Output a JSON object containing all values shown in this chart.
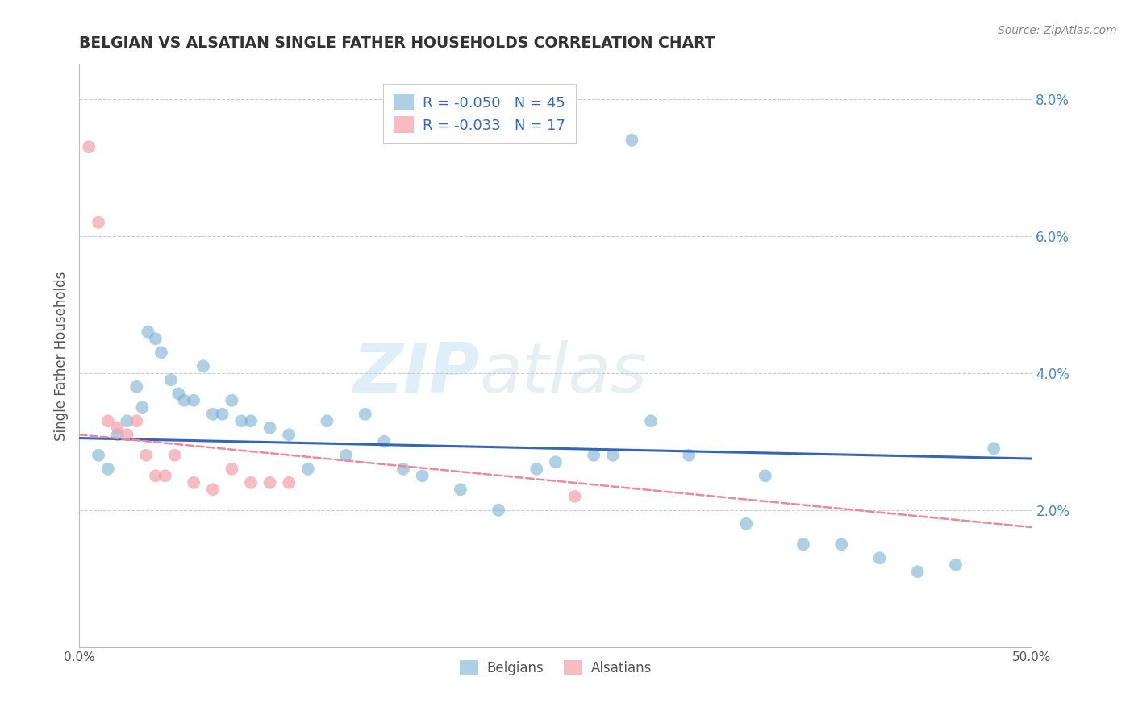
{
  "title": "BELGIAN VS ALSATIAN SINGLE FATHER HOUSEHOLDS CORRELATION CHART",
  "source": "Source: ZipAtlas.com",
  "ylabel": "Single Father Households",
  "xlim": [
    0.0,
    50.0
  ],
  "ylim": [
    0.0,
    8.5
  ],
  "yticks": [
    2.0,
    4.0,
    6.0,
    8.0
  ],
  "ytick_labels": [
    "2.0%",
    "4.0%",
    "6.0%",
    "8.0%"
  ],
  "watermark_zip": "ZIP",
  "watermark_atlas": "atlas",
  "legend_belgian_r": "-0.050",
  "legend_belgian_n": "45",
  "legend_alsatian_r": "-0.033",
  "legend_alsatian_n": "17",
  "belgian_color": "#7BAFD4",
  "alsatian_color": "#F4A0A8",
  "belgian_line_color": "#3366BB",
  "alsatian_line_color": "#EE8899",
  "belgian_scatter_x": [
    1.0,
    1.5,
    2.0,
    2.5,
    3.0,
    3.3,
    3.6,
    4.0,
    4.3,
    4.8,
    5.2,
    5.5,
    6.0,
    6.5,
    7.0,
    7.5,
    8.0,
    8.5,
    9.0,
    10.0,
    11.0,
    12.0,
    13.0,
    14.0,
    15.0,
    16.0,
    17.0,
    18.0,
    20.0,
    22.0,
    24.0,
    25.0,
    27.0,
    28.0,
    30.0,
    32.0,
    35.0,
    36.0,
    38.0,
    40.0,
    42.0,
    44.0,
    46.0,
    48.0,
    29.0
  ],
  "belgian_scatter_y": [
    2.8,
    2.6,
    3.1,
    3.3,
    3.8,
    3.5,
    4.6,
    4.5,
    4.3,
    3.9,
    3.7,
    3.6,
    3.6,
    4.1,
    3.4,
    3.4,
    3.6,
    3.3,
    3.3,
    3.2,
    3.1,
    2.6,
    3.3,
    2.8,
    3.4,
    3.0,
    2.6,
    2.5,
    2.3,
    2.0,
    2.6,
    2.7,
    2.8,
    2.8,
    3.3,
    2.8,
    1.8,
    2.5,
    1.5,
    1.5,
    1.3,
    1.1,
    1.2,
    2.9,
    7.4
  ],
  "alsatian_scatter_x": [
    0.5,
    1.0,
    1.5,
    2.0,
    2.5,
    3.0,
    3.5,
    4.0,
    4.5,
    5.0,
    6.0,
    7.0,
    8.0,
    9.0,
    10.0,
    11.0,
    26.0
  ],
  "alsatian_scatter_y": [
    7.3,
    6.2,
    3.3,
    3.2,
    3.1,
    3.3,
    2.8,
    2.5,
    2.5,
    2.8,
    2.4,
    2.3,
    2.6,
    2.4,
    2.4,
    2.4,
    2.2
  ],
  "belgian_trendline_x": [
    0.0,
    50.0
  ],
  "belgian_trendline_y": [
    3.05,
    2.75
  ],
  "alsatian_trendline_x": [
    0.0,
    50.0
  ],
  "alsatian_trendline_y": [
    3.1,
    1.75
  ],
  "background_color": "#FFFFFF",
  "grid_color": "#CCCCCC",
  "legend_bottom_labels": [
    "Belgians",
    "Alsatians"
  ]
}
